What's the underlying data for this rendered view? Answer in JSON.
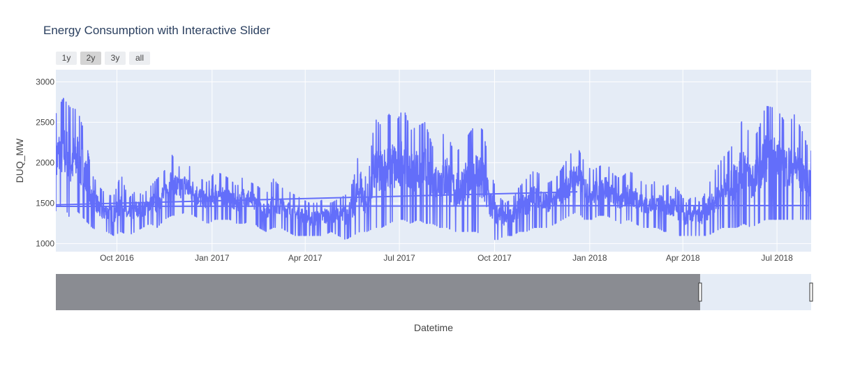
{
  "title": "Energy Consumption with Interactive Slider",
  "range_selector": {
    "buttons": [
      {
        "label": "1y",
        "active": false
      },
      {
        "label": "2y",
        "active": true
      },
      {
        "label": "3y",
        "active": false
      },
      {
        "label": "all",
        "active": false
      }
    ]
  },
  "colors": {
    "line": "#636efa",
    "plot_bg": "#e5ecf6",
    "grid": "#ffffff",
    "slider_mask": "#8a8c92",
    "slider_bg": "#e5ecf6"
  },
  "chart_data": {
    "type": "line",
    "xlabel": "Datetime",
    "ylabel": "DUQ_MW",
    "ylim": [
      900,
      3150
    ],
    "xlim": [
      "2016-08-03",
      "2018-08-03"
    ],
    "grid": true,
    "x_ticks": [
      "2016-10-01",
      "2017-01-01",
      "2017-04-01",
      "2017-07-01",
      "2017-10-01",
      "2018-01-01",
      "2018-04-01",
      "2018-07-01"
    ],
    "x_tick_labels": [
      "Oct 2016",
      "Jan 2017",
      "Apr 2017",
      "Jul 2017",
      "Oct 2017",
      "Jan 2018",
      "Apr 2018",
      "Jul 2018"
    ],
    "y_ticks": [
      1000,
      1500,
      2000,
      2500,
      3000
    ],
    "y_tick_labels": [
      "1000",
      "1500",
      "2000",
      "2500",
      "3000"
    ],
    "range_slider": {
      "selected_start_fraction": 0.853,
      "selected_end_fraction": 1.0
    },
    "series": [
      {
        "x": [
          "2016-08-03",
          "2016-08-10",
          "2016-08-17",
          "2016-08-24",
          "2016-08-31",
          "2016-09-07",
          "2016-09-14",
          "2016-09-21",
          "2016-09-28",
          "2016-10-05",
          "2016-10-12",
          "2016-10-19",
          "2016-10-26",
          "2016-11-02",
          "2016-11-09",
          "2016-11-16",
          "2016-11-23",
          "2016-11-30",
          "2016-12-07",
          "2016-12-14",
          "2016-12-21",
          "2016-12-28",
          "2017-01-04",
          "2017-01-11",
          "2017-01-18",
          "2017-01-25",
          "2017-02-01",
          "2017-02-08",
          "2017-02-15",
          "2017-02-22",
          "2017-03-01",
          "2017-03-08",
          "2017-03-15",
          "2017-03-22",
          "2017-03-29",
          "2017-04-05",
          "2017-04-12",
          "2017-04-19",
          "2017-04-26",
          "2017-05-03",
          "2017-05-10",
          "2017-05-17",
          "2017-05-24",
          "2017-05-31",
          "2017-06-07",
          "2017-06-14",
          "2017-06-21",
          "2017-06-28",
          "2017-07-05",
          "2017-07-12",
          "2017-07-19",
          "2017-07-26",
          "2017-08-02",
          "2017-08-09",
          "2017-08-16",
          "2017-08-23",
          "2017-08-30",
          "2017-09-06",
          "2017-09-13",
          "2017-09-20",
          "2017-09-27",
          "2017-10-04",
          "2017-10-11",
          "2017-10-18",
          "2017-10-25",
          "2017-11-01",
          "2017-11-08",
          "2017-11-15",
          "2017-11-22",
          "2017-11-29",
          "2017-12-06",
          "2017-12-13",
          "2017-12-20",
          "2017-12-27",
          "2018-01-03",
          "2018-01-10",
          "2018-01-17",
          "2018-01-24",
          "2018-01-31",
          "2018-02-07",
          "2018-02-14",
          "2018-02-21",
          "2018-02-28",
          "2018-03-07",
          "2018-03-14",
          "2018-03-21",
          "2018-03-28",
          "2018-04-04",
          "2018-04-11",
          "2018-04-18",
          "2018-04-25",
          "2018-05-02",
          "2018-05-09",
          "2018-05-16",
          "2018-05-23",
          "2018-05-30",
          "2018-06-06",
          "2018-06-13",
          "2018-06-20",
          "2018-06-27",
          "2018-07-04",
          "2018-07-11",
          "2018-07-18",
          "2018-07-25",
          "2018-08-01"
        ],
        "high": [
          2600,
          2800,
          2680,
          2650,
          2360,
          1850,
          1700,
          1600,
          1590,
          1860,
          1550,
          1650,
          1600,
          1700,
          1800,
          1900,
          2100,
          1950,
          2000,
          1900,
          1800,
          1750,
          1900,
          1850,
          1800,
          1700,
          1850,
          1750,
          1700,
          1600,
          1800,
          1700,
          1650,
          1600,
          1550,
          1500,
          1500,
          1550,
          1500,
          1550,
          1600,
          1750,
          2200,
          1700,
          2550,
          2450,
          2600,
          2500,
          2680,
          2400,
          2450,
          2500,
          2200,
          2300,
          2400,
          2100,
          2200,
          2350,
          2480,
          2400,
          1900,
          1600,
          1500,
          1550,
          1700,
          1800,
          1900,
          1850,
          1750,
          1800,
          1950,
          2100,
          2200,
          2000,
          1900,
          1950,
          2000,
          1850,
          1800,
          1900,
          1850,
          1750,
          1700,
          1800,
          1700,
          1750,
          1650,
          1500,
          1600,
          1500,
          1700,
          1900,
          2050,
          2150,
          2300,
          2600,
          2250,
          2400,
          2700,
          2680,
          2600,
          2450,
          2600,
          2400,
          2150
        ],
        "low": [
          1400,
          1500,
          1300,
          1400,
          1300,
          1200,
          1150,
          1150,
          1100,
          1150,
          1100,
          1150,
          1200,
          1250,
          1200,
          1300,
          1350,
          1350,
          1400,
          1350,
          1300,
          1250,
          1300,
          1300,
          1300,
          1250,
          1250,
          1300,
          1200,
          1150,
          1200,
          1200,
          1150,
          1100,
          1100,
          1100,
          1100,
          1100,
          1150,
          1100,
          1050,
          1100,
          1150,
          1150,
          1200,
          1200,
          1250,
          1300,
          1300,
          1250,
          1300,
          1250,
          1250,
          1200,
          1200,
          1150,
          1150,
          1150,
          1150,
          1100,
          1050,
          1050,
          1100,
          1100,
          1150,
          1150,
          1200,
          1200,
          1200,
          1250,
          1300,
          1350,
          1400,
          1300,
          1300,
          1350,
          1350,
          1300,
          1250,
          1300,
          1250,
          1200,
          1200,
          1200,
          1150,
          1150,
          1100,
          1100,
          1100,
          1100,
          1100,
          1150,
          1200,
          1200,
          1200,
          1250,
          1200,
          1250,
          1300,
          1300,
          1300,
          1300,
          1300,
          1300,
          1300
        ]
      }
    ]
  }
}
